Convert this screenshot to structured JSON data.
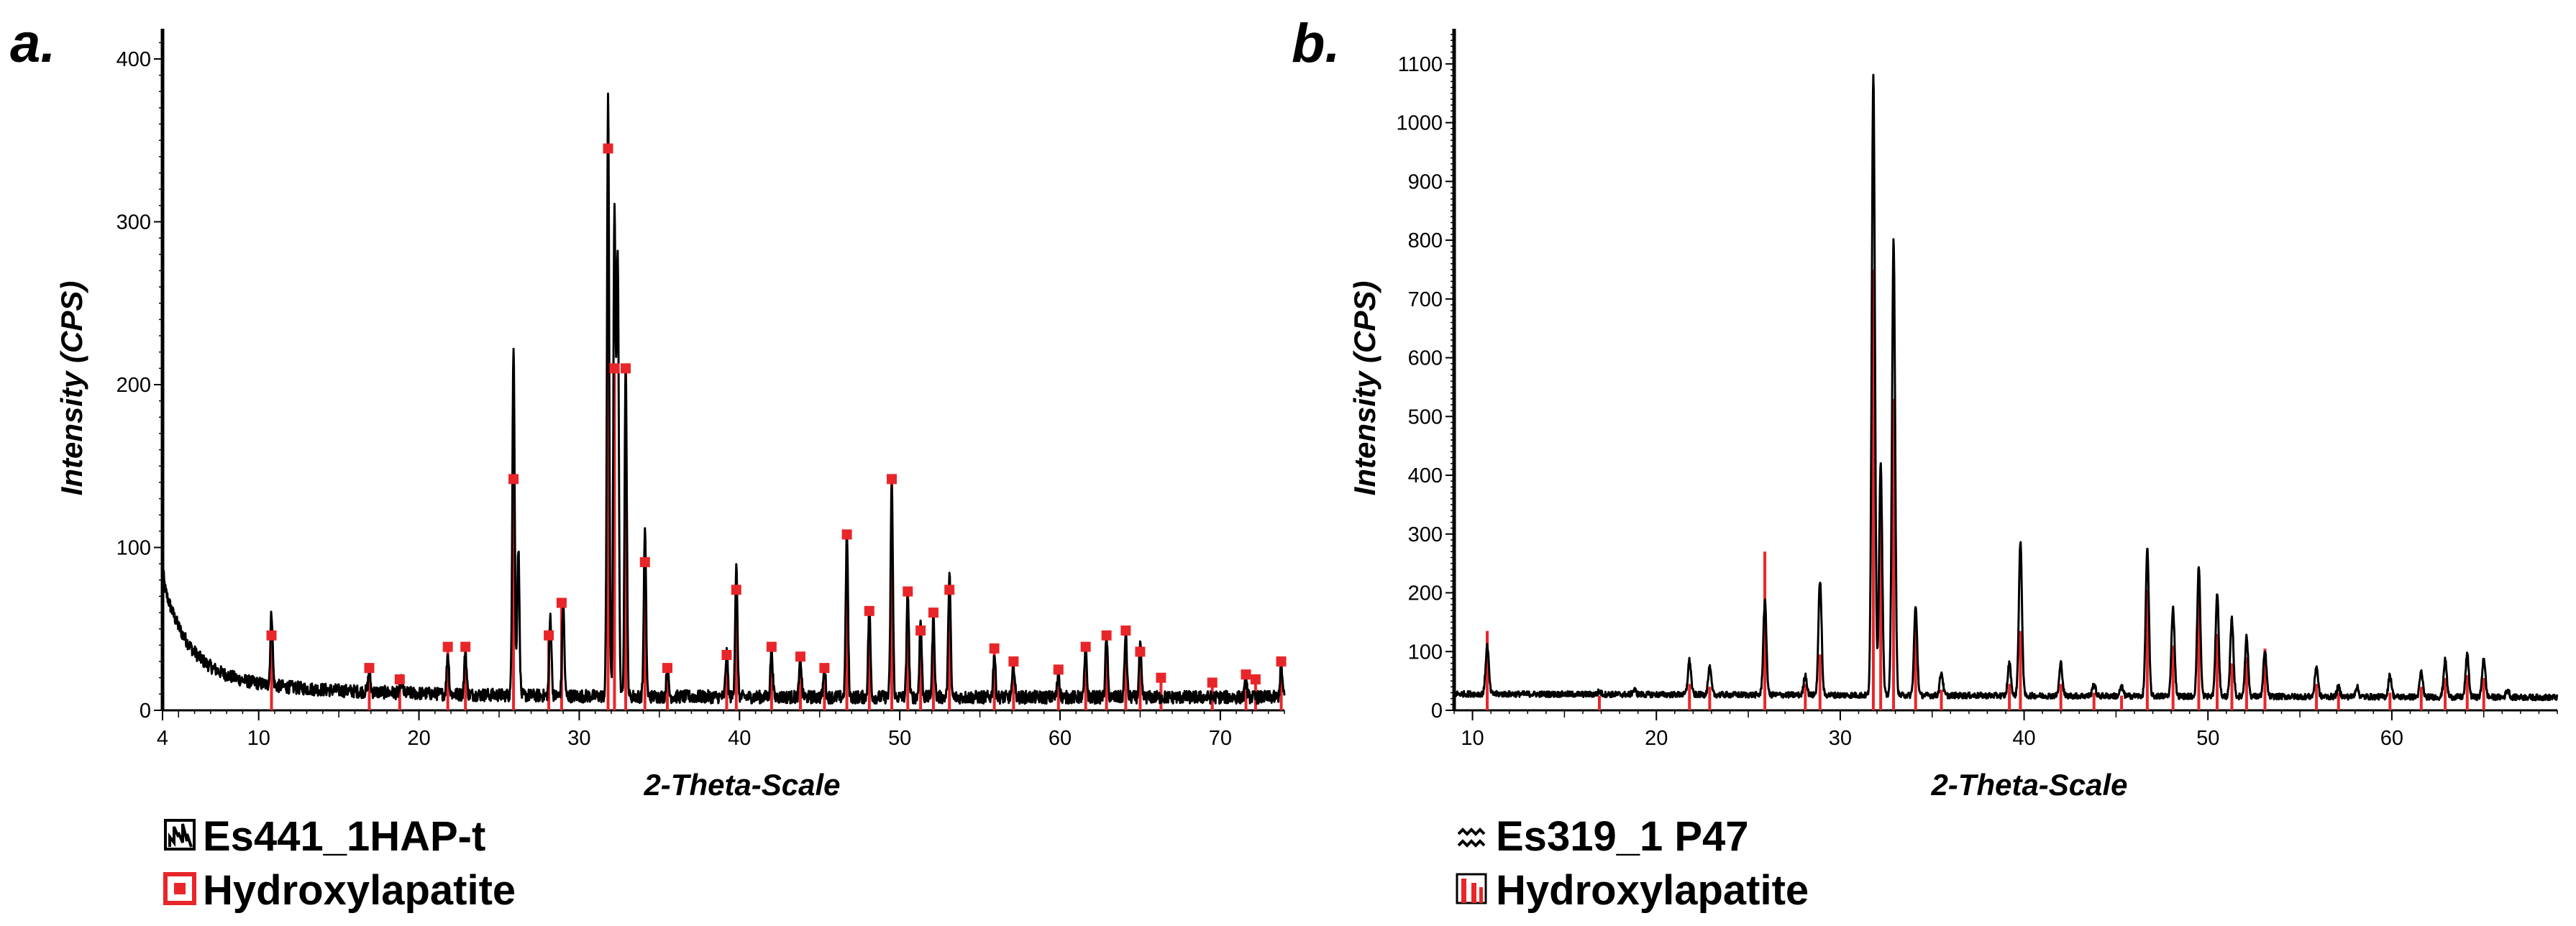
{
  "colors": {
    "measured": "#000000",
    "reference": "#e8262a",
    "background": "#ffffff"
  },
  "chart_data": [
    {
      "panel_label": "a.",
      "type": "line",
      "xlabel": "2-Theta-Scale",
      "ylabel": "Intensity (CPS)",
      "xlim": [
        4,
        74
      ],
      "ylim": [
        0,
        415
      ],
      "x_ticks": [
        4,
        10,
        20,
        30,
        40,
        50,
        60,
        70
      ],
      "y_ticks": [
        0,
        100,
        200,
        300,
        400
      ],
      "reference_markers": true,
      "legend": [
        {
          "label": "Es441_1HAP-t",
          "icon": "pattern-hatched-icon"
        },
        {
          "label": "Hydroxylapatite",
          "icon": "hollow-square-icon"
        }
      ],
      "measured_peaks": [
        {
          "x": 4.0,
          "y": 88
        },
        {
          "x": 10.8,
          "y": 60
        },
        {
          "x": 16.9,
          "y": 24
        },
        {
          "x": 18.9,
          "y": 18
        },
        {
          "x": 21.8,
          "y": 35
        },
        {
          "x": 22.9,
          "y": 36
        },
        {
          "x": 25.9,
          "y": 225
        },
        {
          "x": 26.2,
          "y": 100
        },
        {
          "x": 28.2,
          "y": 58
        },
        {
          "x": 29.0,
          "y": 65
        },
        {
          "x": 31.8,
          "y": 375
        },
        {
          "x": 32.2,
          "y": 305
        },
        {
          "x": 32.4,
          "y": 280
        },
        {
          "x": 32.9,
          "y": 210
        },
        {
          "x": 34.1,
          "y": 110
        },
        {
          "x": 35.5,
          "y": 26
        },
        {
          "x": 39.2,
          "y": 35
        },
        {
          "x": 39.8,
          "y": 88
        },
        {
          "x": 42.0,
          "y": 38
        },
        {
          "x": 43.8,
          "y": 32
        },
        {
          "x": 45.3,
          "y": 26
        },
        {
          "x": 46.7,
          "y": 108
        },
        {
          "x": 48.1,
          "y": 62
        },
        {
          "x": 49.5,
          "y": 140
        },
        {
          "x": 50.5,
          "y": 72
        },
        {
          "x": 51.3,
          "y": 55
        },
        {
          "x": 52.1,
          "y": 58
        },
        {
          "x": 53.1,
          "y": 85
        },
        {
          "x": 55.9,
          "y": 35
        },
        {
          "x": 57.1,
          "y": 28
        },
        {
          "x": 59.9,
          "y": 24
        },
        {
          "x": 61.6,
          "y": 38
        },
        {
          "x": 62.9,
          "y": 45
        },
        {
          "x": 64.1,
          "y": 48
        },
        {
          "x": 65.0,
          "y": 40
        },
        {
          "x": 71.6,
          "y": 18
        },
        {
          "x": 73.8,
          "y": 28
        }
      ],
      "reference_peaks": [
        {
          "x": 10.8,
          "y": 46
        },
        {
          "x": 16.9,
          "y": 26
        },
        {
          "x": 18.8,
          "y": 19
        },
        {
          "x": 21.8,
          "y": 39
        },
        {
          "x": 22.9,
          "y": 39
        },
        {
          "x": 25.9,
          "y": 142
        },
        {
          "x": 28.1,
          "y": 46
        },
        {
          "x": 28.9,
          "y": 66
        },
        {
          "x": 31.8,
          "y": 345
        },
        {
          "x": 32.2,
          "y": 210
        },
        {
          "x": 32.9,
          "y": 210
        },
        {
          "x": 34.1,
          "y": 91
        },
        {
          "x": 35.5,
          "y": 26
        },
        {
          "x": 39.2,
          "y": 34
        },
        {
          "x": 39.8,
          "y": 74
        },
        {
          "x": 42.0,
          "y": 39
        },
        {
          "x": 43.8,
          "y": 33
        },
        {
          "x": 45.3,
          "y": 26
        },
        {
          "x": 46.7,
          "y": 108
        },
        {
          "x": 48.1,
          "y": 61
        },
        {
          "x": 49.5,
          "y": 142
        },
        {
          "x": 50.5,
          "y": 73
        },
        {
          "x": 51.3,
          "y": 49
        },
        {
          "x": 52.1,
          "y": 60
        },
        {
          "x": 53.1,
          "y": 74
        },
        {
          "x": 55.9,
          "y": 38
        },
        {
          "x": 57.1,
          "y": 30
        },
        {
          "x": 59.9,
          "y": 25
        },
        {
          "x": 61.6,
          "y": 39
        },
        {
          "x": 62.9,
          "y": 46
        },
        {
          "x": 64.1,
          "y": 49
        },
        {
          "x": 65.0,
          "y": 36
        },
        {
          "x": 66.3,
          "y": 20
        },
        {
          "x": 69.5,
          "y": 17
        },
        {
          "x": 71.6,
          "y": 22
        },
        {
          "x": 72.2,
          "y": 19
        },
        {
          "x": 73.8,
          "y": 30
        }
      ]
    },
    {
      "panel_label": "b.",
      "type": "line",
      "xlabel": "2-Theta-Scale",
      "ylabel": "Intensity (CPS)",
      "xlim": [
        9,
        69
      ],
      "ylim": [
        0,
        1150
      ],
      "x_ticks": [
        10,
        20,
        30,
        40,
        50,
        60
      ],
      "y_ticks": [
        0,
        100,
        200,
        300,
        400,
        500,
        600,
        700,
        800,
        900,
        1000,
        1100
      ],
      "reference_markers": false,
      "legend": [
        {
          "label": "Es319_1 P47",
          "icon": "pattern-dotted-icon"
        },
        {
          "label": "Hydroxylapatite",
          "icon": "pattern-bars-icon"
        }
      ],
      "measured_peaks": [
        {
          "x": 10.8,
          "y": 110
        },
        {
          "x": 16.9,
          "y": 32
        },
        {
          "x": 18.8,
          "y": 35
        },
        {
          "x": 21.8,
          "y": 85
        },
        {
          "x": 22.9,
          "y": 72
        },
        {
          "x": 25.9,
          "y": 185
        },
        {
          "x": 28.1,
          "y": 60
        },
        {
          "x": 28.9,
          "y": 222
        },
        {
          "x": 31.8,
          "y": 1085
        },
        {
          "x": 32.2,
          "y": 420
        },
        {
          "x": 32.9,
          "y": 800
        },
        {
          "x": 34.1,
          "y": 175
        },
        {
          "x": 35.5,
          "y": 65
        },
        {
          "x": 39.2,
          "y": 80
        },
        {
          "x": 39.8,
          "y": 285
        },
        {
          "x": 42.0,
          "y": 80
        },
        {
          "x": 43.8,
          "y": 45
        },
        {
          "x": 45.3,
          "y": 40
        },
        {
          "x": 46.7,
          "y": 275
        },
        {
          "x": 48.1,
          "y": 175
        },
        {
          "x": 49.5,
          "y": 245
        },
        {
          "x": 50.5,
          "y": 200
        },
        {
          "x": 51.3,
          "y": 155
        },
        {
          "x": 52.1,
          "y": 125
        },
        {
          "x": 53.1,
          "y": 100
        },
        {
          "x": 55.9,
          "y": 75
        },
        {
          "x": 57.1,
          "y": 40
        },
        {
          "x": 58.1,
          "y": 40
        },
        {
          "x": 59.9,
          "y": 60
        },
        {
          "x": 61.6,
          "y": 65
        },
        {
          "x": 62.9,
          "y": 85
        },
        {
          "x": 64.1,
          "y": 95
        },
        {
          "x": 65.0,
          "y": 90
        },
        {
          "x": 66.3,
          "y": 35
        }
      ],
      "reference_peaks": [
        {
          "x": 10.8,
          "y": 135
        },
        {
          "x": 16.9,
          "y": 25
        },
        {
          "x": 21.8,
          "y": 45
        },
        {
          "x": 22.9,
          "y": 40
        },
        {
          "x": 25.9,
          "y": 270
        },
        {
          "x": 28.1,
          "y": 45
        },
        {
          "x": 28.9,
          "y": 95
        },
        {
          "x": 31.8,
          "y": 750
        },
        {
          "x": 32.2,
          "y": 390
        },
        {
          "x": 32.9,
          "y": 530
        },
        {
          "x": 34.1,
          "y": 145
        },
        {
          "x": 35.5,
          "y": 35
        },
        {
          "x": 39.2,
          "y": 45
        },
        {
          "x": 39.8,
          "y": 135
        },
        {
          "x": 42.0,
          "y": 45
        },
        {
          "x": 43.8,
          "y": 30
        },
        {
          "x": 45.3,
          "y": 25
        },
        {
          "x": 46.7,
          "y": 205
        },
        {
          "x": 48.1,
          "y": 110
        },
        {
          "x": 49.5,
          "y": 240
        },
        {
          "x": 50.5,
          "y": 130
        },
        {
          "x": 51.3,
          "y": 80
        },
        {
          "x": 52.1,
          "y": 90
        },
        {
          "x": 53.1,
          "y": 105
        },
        {
          "x": 55.9,
          "y": 45
        },
        {
          "x": 57.1,
          "y": 30
        },
        {
          "x": 59.9,
          "y": 30
        },
        {
          "x": 61.6,
          "y": 40
        },
        {
          "x": 62.9,
          "y": 55
        },
        {
          "x": 64.1,
          "y": 60
        },
        {
          "x": 65.0,
          "y": 55
        }
      ]
    }
  ]
}
